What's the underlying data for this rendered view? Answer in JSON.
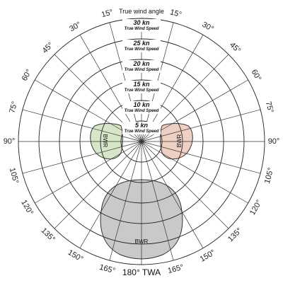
{
  "title": "True wind angle",
  "bottom_label": "180° TWA",
  "angle_labels": [
    {
      "deg": -15,
      "text": "15°"
    },
    {
      "deg": 15,
      "text": "15°"
    },
    {
      "deg": -30,
      "text": "30°"
    },
    {
      "deg": 30,
      "text": "30°"
    },
    {
      "deg": -45,
      "text": "45°"
    },
    {
      "deg": 45,
      "text": "45°"
    },
    {
      "deg": -60,
      "text": "60°"
    },
    {
      "deg": 60,
      "text": "60°"
    },
    {
      "deg": -75,
      "text": "75°"
    },
    {
      "deg": 75,
      "text": "75°"
    },
    {
      "deg": -90,
      "text": "90°"
    },
    {
      "deg": 90,
      "text": "90°"
    },
    {
      "deg": -105,
      "text": "105°"
    },
    {
      "deg": 105,
      "text": "105°"
    },
    {
      "deg": -120,
      "text": "120°"
    },
    {
      "deg": 120,
      "text": "120°"
    },
    {
      "deg": -135,
      "text": "135°"
    },
    {
      "deg": 135,
      "text": "135°"
    },
    {
      "deg": -150,
      "text": "150°"
    },
    {
      "deg": 150,
      "text": "150°"
    },
    {
      "deg": -165,
      "text": "165°"
    },
    {
      "deg": 165,
      "text": "165°"
    }
  ],
  "speed_rings": [
    {
      "kn": 5,
      "label": "5 kn",
      "sublabel": "True Wind Speed"
    },
    {
      "kn": 10,
      "label": "10 kn",
      "sublabel": "True Wind Speed"
    },
    {
      "kn": 15,
      "label": "15 kn",
      "sublabel": "True Wind Speed"
    },
    {
      "kn": 20,
      "label": "20 kn",
      "sublabel": "True Wind Speed"
    },
    {
      "kn": 25,
      "label": "25 kn",
      "sublabel": "True Wind Speed"
    },
    {
      "kn": 30,
      "label": "30 kn",
      "sublabel": "True Wind Speed"
    }
  ],
  "regions": [
    {
      "id": "left",
      "label": "BWR",
      "color": "#d8e6c8"
    },
    {
      "id": "right",
      "label": "BWR",
      "color": "#edcfc4"
    },
    {
      "id": "bottom",
      "label": "BWR",
      "color": "#c9c9cc"
    }
  ]
}
